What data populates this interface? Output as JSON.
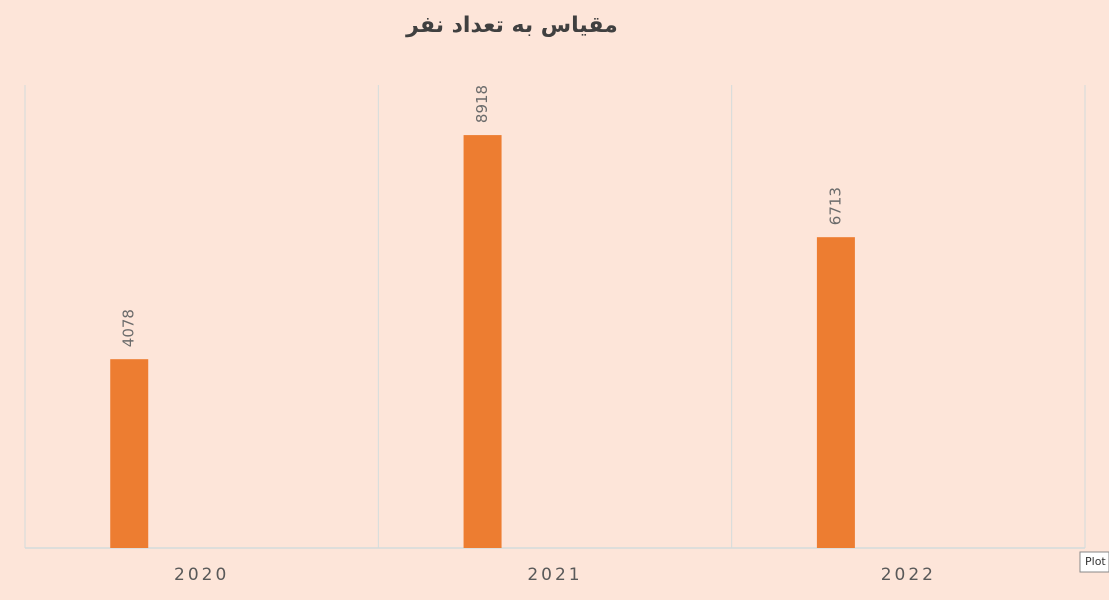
{
  "chart_data": {
    "type": "bar",
    "title": "مقياس به تعداد نفر",
    "categories": [
      "2020",
      "2021",
      "2022"
    ],
    "values": [
      4078,
      8918,
      6713
    ],
    "color": "#ed7d31",
    "ylim": [
      0,
      10000
    ]
  },
  "tooltip": "Plot"
}
